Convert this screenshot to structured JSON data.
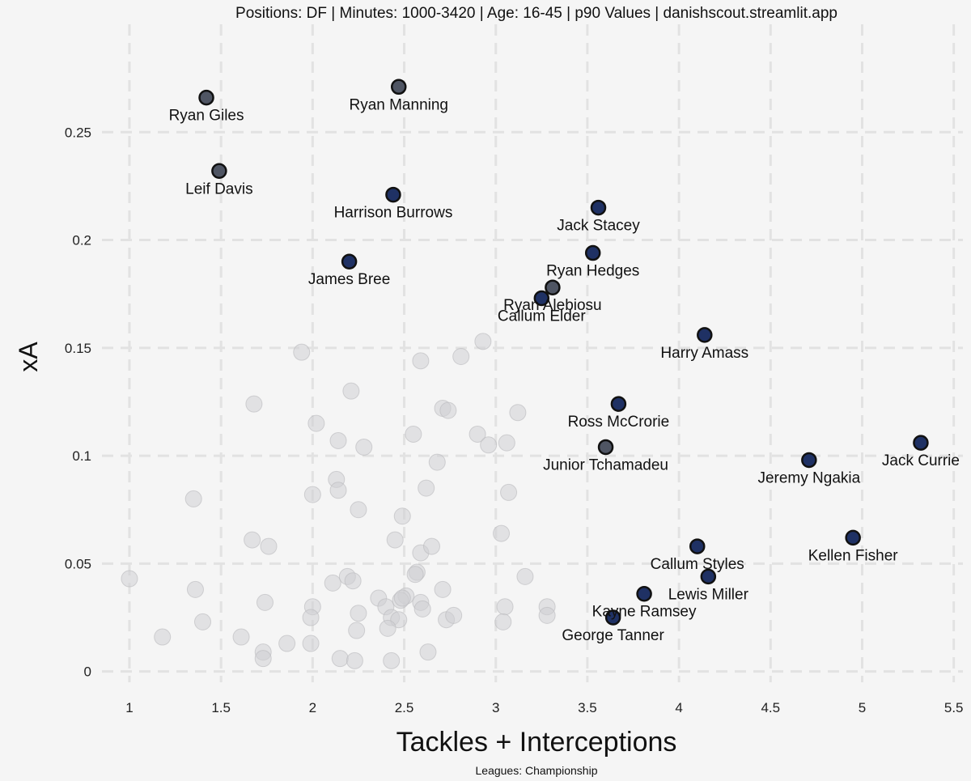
{
  "chart_data": {
    "type": "scatter",
    "title": "Positions: DF  | Minutes: 1000-3420 | Age: 16-45  | p90 Values | danishscout.streamlit.app",
    "xlabel": "Tackles + Interceptions",
    "ylabel": "xA",
    "caption": "Leagues: Championship",
    "xlim": [
      0.85,
      5.55
    ],
    "ylim": [
      -0.005,
      0.3
    ],
    "x_ticks": [
      1,
      1.5,
      2,
      2.5,
      3,
      3.5,
      4,
      4.5,
      5,
      5.5
    ],
    "x_tick_labels": [
      "1",
      "1.5",
      "2",
      "2.5",
      "3",
      "3.5",
      "4",
      "4.5",
      "5",
      "5.5"
    ],
    "y_ticks": [
      0,
      0.05,
      0.1,
      0.15,
      0.2,
      0.25
    ],
    "y_tick_labels": [
      "0",
      "0.05",
      "0.1",
      "0.15",
      "0.2",
      "0.25"
    ],
    "grid": true,
    "colors": {
      "background": "#f5f5f5",
      "highlight_fill": "#1f3164",
      "highlight_fill_alt": "#4f5563",
      "background_point": "#d0d0d3",
      "point_edge": "#111111"
    },
    "highlighted": [
      {
        "name": "Ryan Giles",
        "x": 1.42,
        "y": 0.266,
        "label_pos": "below",
        "color": "#4f5563"
      },
      {
        "name": "Ryan Manning",
        "x": 2.47,
        "y": 0.271,
        "label_pos": "below",
        "color": "#4f5563"
      },
      {
        "name": "Leif Davis",
        "x": 1.49,
        "y": 0.232,
        "label_pos": "below",
        "color": "#4f5563"
      },
      {
        "name": "Harrison Burrows",
        "x": 2.44,
        "y": 0.221,
        "label_pos": "below",
        "color": "#1f3164"
      },
      {
        "name": "Jack Stacey",
        "x": 3.56,
        "y": 0.215,
        "label_pos": "below",
        "color": "#1f3164"
      },
      {
        "name": "James Bree",
        "x": 2.2,
        "y": 0.19,
        "label_pos": "below",
        "color": "#1f3164"
      },
      {
        "name": "Ryan Hedges",
        "x": 3.53,
        "y": 0.194,
        "label_pos": "below",
        "color": "#1f3164"
      },
      {
        "name": "Ryan Alebiosu",
        "x": 3.31,
        "y": 0.178,
        "label_pos": "below",
        "color": "#4f5563"
      },
      {
        "name": "Callum Elder",
        "x": 3.25,
        "y": 0.173,
        "label_pos": "below",
        "color": "#1f3164"
      },
      {
        "name": "Harry Amass",
        "x": 4.14,
        "y": 0.156,
        "label_pos": "below",
        "color": "#1f3164"
      },
      {
        "name": "Ross McCrorie",
        "x": 3.67,
        "y": 0.124,
        "label_pos": "below",
        "color": "#1f3164"
      },
      {
        "name": "Junior Tchamadeu",
        "x": 3.6,
        "y": 0.104,
        "label_pos": "below",
        "color": "#4f5563"
      },
      {
        "name": "Jack Currie",
        "x": 5.32,
        "y": 0.106,
        "label_pos": "below",
        "color": "#1f3164"
      },
      {
        "name": "Jeremy Ngakia",
        "x": 4.71,
        "y": 0.098,
        "label_pos": "below",
        "color": "#1f3164"
      },
      {
        "name": "Kellen Fisher",
        "x": 4.95,
        "y": 0.062,
        "label_pos": "below",
        "color": "#1f3164"
      },
      {
        "name": "Callum Styles",
        "x": 4.1,
        "y": 0.058,
        "label_pos": "below",
        "color": "#1f3164"
      },
      {
        "name": "Lewis Miller",
        "x": 4.16,
        "y": 0.044,
        "label_pos": "below",
        "color": "#1f3164"
      },
      {
        "name": "Kayne Ramsey",
        "x": 3.81,
        "y": 0.036,
        "label_pos": "below",
        "color": "#1f3164"
      },
      {
        "name": "George Tanner",
        "x": 3.64,
        "y": 0.025,
        "label_pos": "below",
        "color": "#1f3164"
      }
    ],
    "others": [
      [
        1.94,
        0.148
      ],
      [
        2.59,
        0.144
      ],
      [
        2.81,
        0.146
      ],
      [
        2.93,
        0.153
      ],
      [
        1.68,
        0.124
      ],
      [
        2.21,
        0.13
      ],
      [
        2.02,
        0.115
      ],
      [
        2.14,
        0.107
      ],
      [
        2.28,
        0.104
      ],
      [
        2.55,
        0.11
      ],
      [
        2.71,
        0.122
      ],
      [
        2.74,
        0.121
      ],
      [
        2.9,
        0.11
      ],
      [
        2.96,
        0.105
      ],
      [
        3.06,
        0.106
      ],
      [
        3.12,
        0.12
      ],
      [
        1.35,
        0.08
      ],
      [
        2.0,
        0.082
      ],
      [
        2.13,
        0.089
      ],
      [
        2.14,
        0.084
      ],
      [
        2.25,
        0.075
      ],
      [
        2.49,
        0.072
      ],
      [
        2.68,
        0.097
      ],
      [
        2.62,
        0.085
      ],
      [
        3.07,
        0.083
      ],
      [
        1.67,
        0.061
      ],
      [
        1.76,
        0.058
      ],
      [
        2.45,
        0.061
      ],
      [
        2.59,
        0.055
      ],
      [
        2.65,
        0.058
      ],
      [
        3.03,
        0.064
      ],
      [
        2.57,
        0.046
      ],
      [
        2.56,
        0.045
      ],
      [
        1.0,
        0.043
      ],
      [
        1.36,
        0.038
      ],
      [
        2.11,
        0.041
      ],
      [
        2.19,
        0.044
      ],
      [
        2.22,
        0.042
      ],
      [
        2.51,
        0.035
      ],
      [
        2.71,
        0.038
      ],
      [
        3.16,
        0.044
      ],
      [
        1.74,
        0.032
      ],
      [
        2.0,
        0.03
      ],
      [
        1.99,
        0.025
      ],
      [
        2.36,
        0.034
      ],
      [
        2.4,
        0.03
      ],
      [
        2.43,
        0.025
      ],
      [
        2.47,
        0.024
      ],
      [
        2.48,
        0.033
      ],
      [
        2.49,
        0.034
      ],
      [
        2.59,
        0.032
      ],
      [
        2.6,
        0.029
      ],
      [
        2.73,
        0.024
      ],
      [
        2.77,
        0.026
      ],
      [
        3.05,
        0.03
      ],
      [
        3.04,
        0.023
      ],
      [
        3.28,
        0.03
      ],
      [
        3.28,
        0.026
      ],
      [
        1.4,
        0.023
      ],
      [
        1.18,
        0.016
      ],
      [
        1.61,
        0.016
      ],
      [
        1.73,
        0.009
      ],
      [
        1.73,
        0.006
      ],
      [
        1.86,
        0.013
      ],
      [
        1.99,
        0.013
      ],
      [
        2.24,
        0.019
      ],
      [
        2.25,
        0.027
      ],
      [
        2.41,
        0.02
      ],
      [
        2.15,
        0.006
      ],
      [
        2.23,
        0.005
      ],
      [
        2.43,
        0.005
      ],
      [
        2.63,
        0.009
      ]
    ]
  }
}
